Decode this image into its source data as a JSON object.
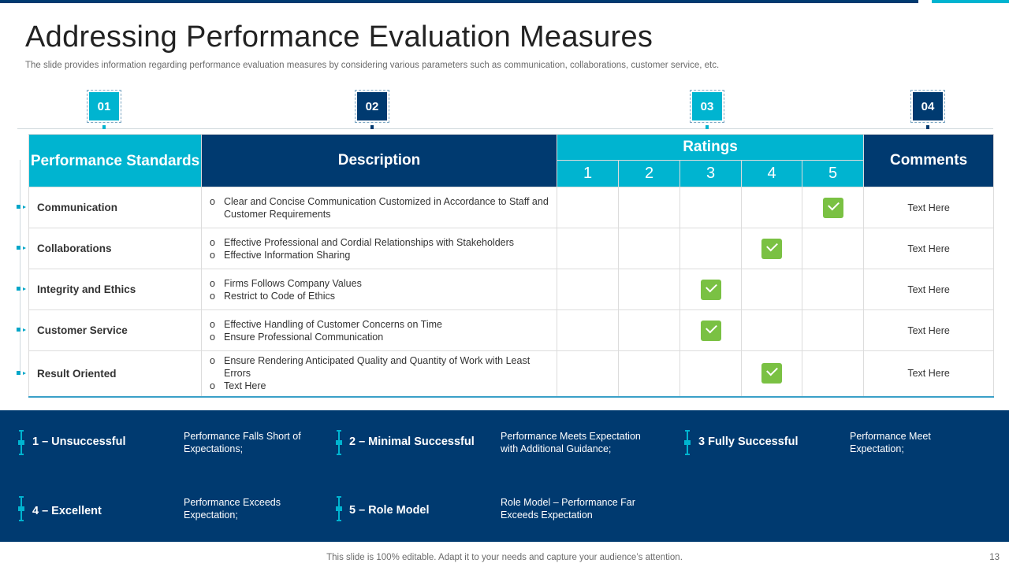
{
  "slide": {
    "title": "Addressing Performance Evaluation Measures",
    "subtitle": "The slide provides information regarding performance evaluation measures by considering various parameters such as communication, collaborations, customer service, etc.",
    "footer": "This slide is 100% editable. Adapt it to your needs and capture your audience’s attention.",
    "page_number": "13"
  },
  "numbers": [
    "01",
    "02",
    "03",
    "04"
  ],
  "table": {
    "headers": {
      "standards": "Performance Standards",
      "description": "Description",
      "ratings": "Ratings",
      "comments": "Comments",
      "scale": [
        "1",
        "2",
        "3",
        "4",
        "5"
      ]
    },
    "bullet": "o",
    "check_icon": "check-icon",
    "check_color": "#7ac143",
    "rows": [
      {
        "standard": "Communication",
        "desc": [
          "Clear and Concise Communication Customized in Accordance to Staff and Customer Requirements"
        ],
        "rating": 5,
        "comment": "Text Here"
      },
      {
        "standard": "Collaborations",
        "desc": [
          "Effective Professional and Cordial Relationships with Stakeholders",
          "Effective Information  Sharing"
        ],
        "rating": 4,
        "comment": "Text Here"
      },
      {
        "standard": "Integrity and Ethics",
        "desc": [
          "Firms Follows Company Values",
          "Restrict to Code  of Ethics"
        ],
        "rating": 3,
        "comment": "Text Here"
      },
      {
        "standard": "Customer  Service",
        "desc": [
          "Effective Handling of Customer Concerns  on Time",
          "Ensure Professional Communication"
        ],
        "rating": 3,
        "comment": "Text Here"
      },
      {
        "standard": "Result Oriented",
        "desc": [
          "Ensure Rendering Anticipated Quality and Quantity of Work with Least Errors",
          "Text Here"
        ],
        "rating": 4,
        "comment": "Text Here"
      }
    ]
  },
  "legend": [
    {
      "label": "1 – Unsuccessful",
      "desc": "Performance  Falls Short of Expectations;"
    },
    {
      "label": "2 – Minimal Successful",
      "desc": "Performance  Meets Expectation with Additional Guidance;"
    },
    {
      "label": "3 Fully Successful",
      "desc": "Performance Meet Expectation;"
    },
    {
      "label": "4 – Excellent",
      "desc": "Performance Exceeds Expectation;"
    },
    {
      "label": "5 – Role Model",
      "desc": "Role Model – Performance Far Exceeds Expectation"
    }
  ],
  "colors": {
    "navy": "#003a70",
    "cyan": "#00b4d0",
    "green": "#7ac143"
  }
}
